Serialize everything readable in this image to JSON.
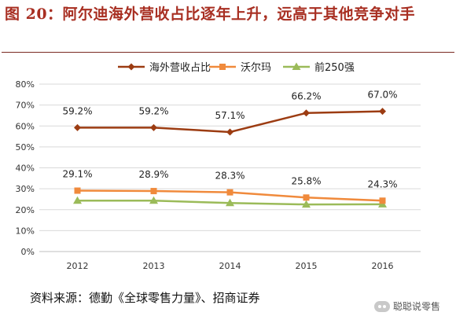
{
  "header": {
    "title": "图 20：阿尔迪海外营收占比逐年上升，远高于其他竞争对手"
  },
  "footer": {
    "source": "资料来源：德勤《全球零售力量》、招商证券",
    "watermark": "聪聪说零售"
  },
  "chart_data": {
    "type": "line",
    "categories": [
      "2012",
      "2013",
      "2014",
      "2015",
      "2016"
    ],
    "yticks": [
      "0%",
      "10%",
      "20%",
      "30%",
      "40%",
      "50%",
      "60%",
      "70%",
      "80%"
    ],
    "ylim": [
      0,
      80
    ],
    "grid": true,
    "legend_position": "top",
    "series": [
      {
        "name": "海外营收占比",
        "values": [
          59.2,
          59.2,
          57.1,
          66.2,
          67.0
        ],
        "labels": [
          "59.2%",
          "59.2%",
          "57.1%",
          "66.2%",
          "67.0%"
        ],
        "color": "#9c3c12",
        "marker": "diamond"
      },
      {
        "name": "沃尔玛",
        "values": [
          29.1,
          28.9,
          28.3,
          25.8,
          24.3
        ],
        "labels": [
          "29.1%",
          "28.9%",
          "28.3%",
          "25.8%",
          "24.3%"
        ],
        "color": "#f08a3c",
        "marker": "square"
      },
      {
        "name": "前250强",
        "values": [
          24.3,
          24.3,
          23.2,
          22.5,
          22.6
        ],
        "color": "#9bbb59",
        "marker": "triangle"
      }
    ]
  }
}
